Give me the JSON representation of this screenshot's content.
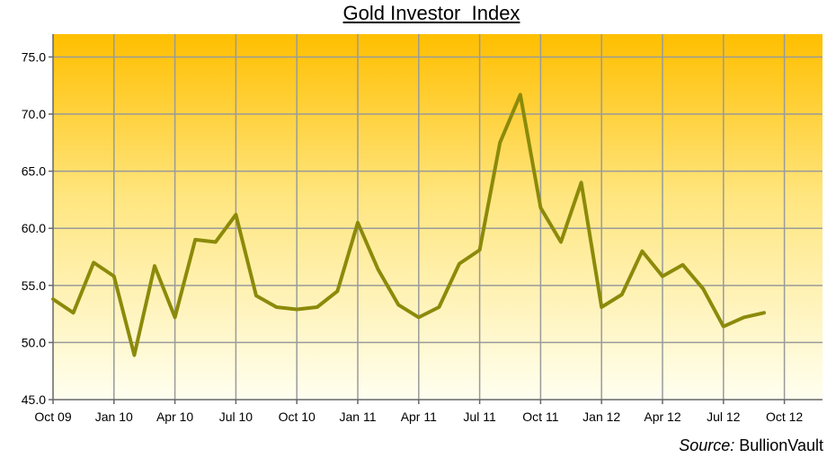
{
  "chart_data": {
    "type": "line",
    "title": "Gold Investor  Index",
    "xlabel": "",
    "ylabel": "",
    "x_ticks": [
      "Oct 09",
      "Jan 10",
      "Apr 10",
      "Jul 10",
      "Oct 10",
      "Jan 11",
      "Apr 11",
      "Jul 11",
      "Oct 11",
      "Jan 12",
      "Apr 12",
      "Jul 12",
      "Oct 12"
    ],
    "y_ticks": [
      "45.0",
      "50.0",
      "55.0",
      "60.0",
      "65.0",
      "70.0",
      "75.0"
    ],
    "ylim": [
      45,
      77
    ],
    "xlim": [
      "2009-10",
      "2012-10"
    ],
    "grid": true,
    "background": "yellow-orange gradient",
    "series": [
      {
        "color": "#8c8a0a",
        "x": [
          "2009-10",
          "2009-11",
          "2009-12",
          "2010-01",
          "2010-02",
          "2010-03",
          "2010-04",
          "2010-05",
          "2010-06",
          "2010-07",
          "2010-08",
          "2010-09",
          "2010-10",
          "2010-11",
          "2010-12",
          "2011-01",
          "2011-02",
          "2011-03",
          "2011-04",
          "2011-05",
          "2011-06",
          "2011-07",
          "2011-08",
          "2011-09",
          "2011-10",
          "2011-11",
          "2011-12",
          "2012-01",
          "2012-02",
          "2012-03",
          "2012-04",
          "2012-05",
          "2012-06",
          "2012-07",
          "2012-08",
          "2012-09"
        ],
        "values": [
          53.8,
          52.6,
          57.0,
          55.8,
          48.9,
          56.7,
          52.2,
          59.0,
          58.8,
          61.2,
          54.1,
          53.1,
          52.9,
          53.1,
          54.5,
          60.5,
          56.4,
          53.3,
          52.2,
          53.1,
          56.9,
          58.1,
          67.5,
          71.7,
          61.8,
          58.8,
          64.0,
          53.1,
          54.2,
          58.0,
          55.8,
          56.8,
          54.7,
          51.4,
          52.2,
          52.6
        ]
      }
    ]
  },
  "source": {
    "label": "Source:",
    "value": "BullionVault"
  }
}
